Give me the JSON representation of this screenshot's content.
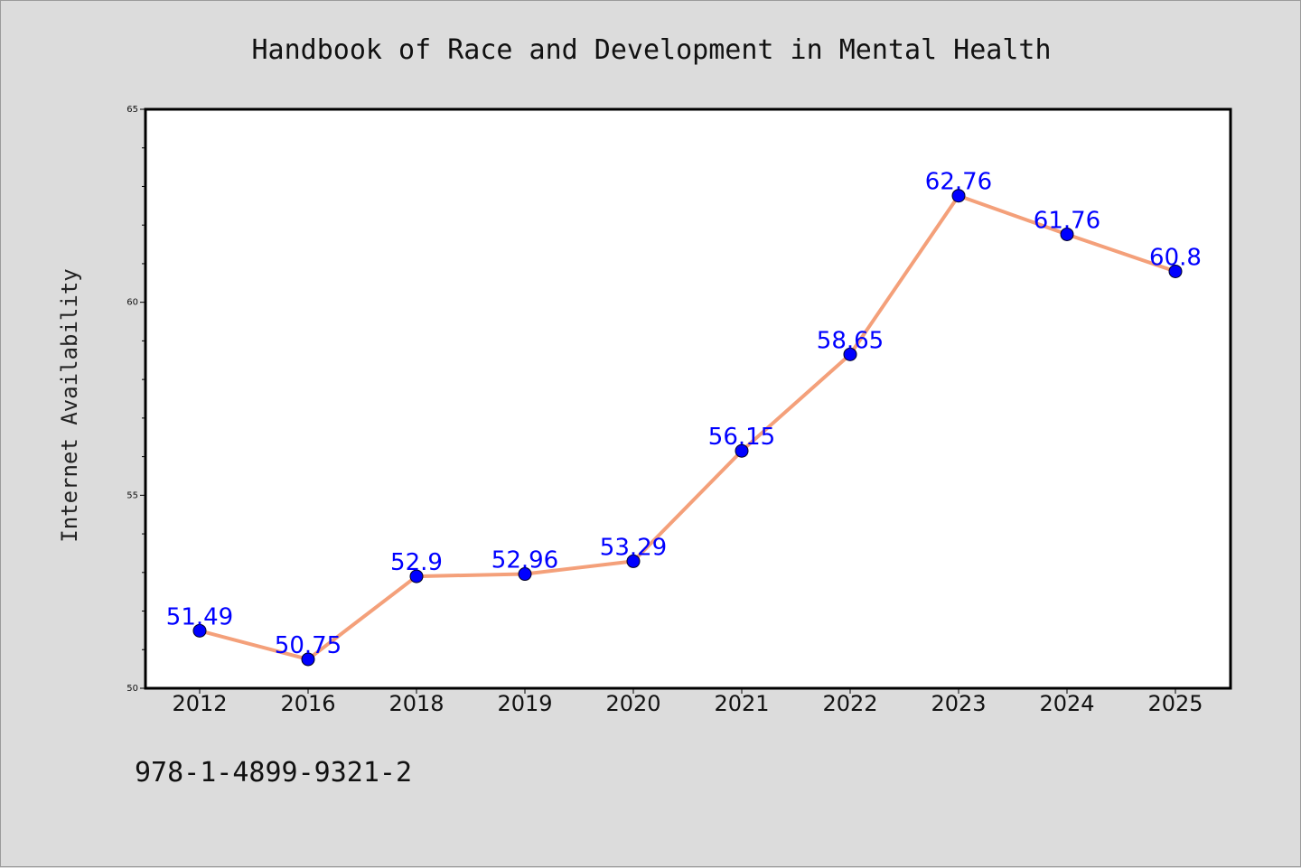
{
  "chart_data": {
    "type": "line",
    "title": "Handbook of Race and Development in Mental Health",
    "xlabel": "",
    "ylabel": "Internet Availability",
    "categories": [
      "2012",
      "2016",
      "2018",
      "2019",
      "2020",
      "2021",
      "2022",
      "2023",
      "2024",
      "2025"
    ],
    "series": [
      {
        "values": [
          51.49,
          50.75,
          52.9,
          52.96,
          53.29,
          56.15,
          58.65,
          62.76,
          61.76,
          60.8
        ],
        "labels": [
          "51.49",
          "50.75",
          "52.9",
          "52.96",
          "53.29",
          "56.15",
          "58.65",
          "62.76",
          "61.76",
          "60.8"
        ],
        "line_color": "#f4a07a",
        "marker_color": "#0000ff"
      }
    ],
    "ylim": [
      50,
      65
    ],
    "yticks": [
      50,
      55,
      60,
      65
    ],
    "ytick_labels": [
      "50",
      "55",
      "60",
      "65"
    ],
    "grid": false,
    "label_color": "#0000ff",
    "background": "#dcdcdc",
    "plot_background": "#ffffff"
  },
  "footer": {
    "isbn": "978-1-4899-9321-2"
  }
}
